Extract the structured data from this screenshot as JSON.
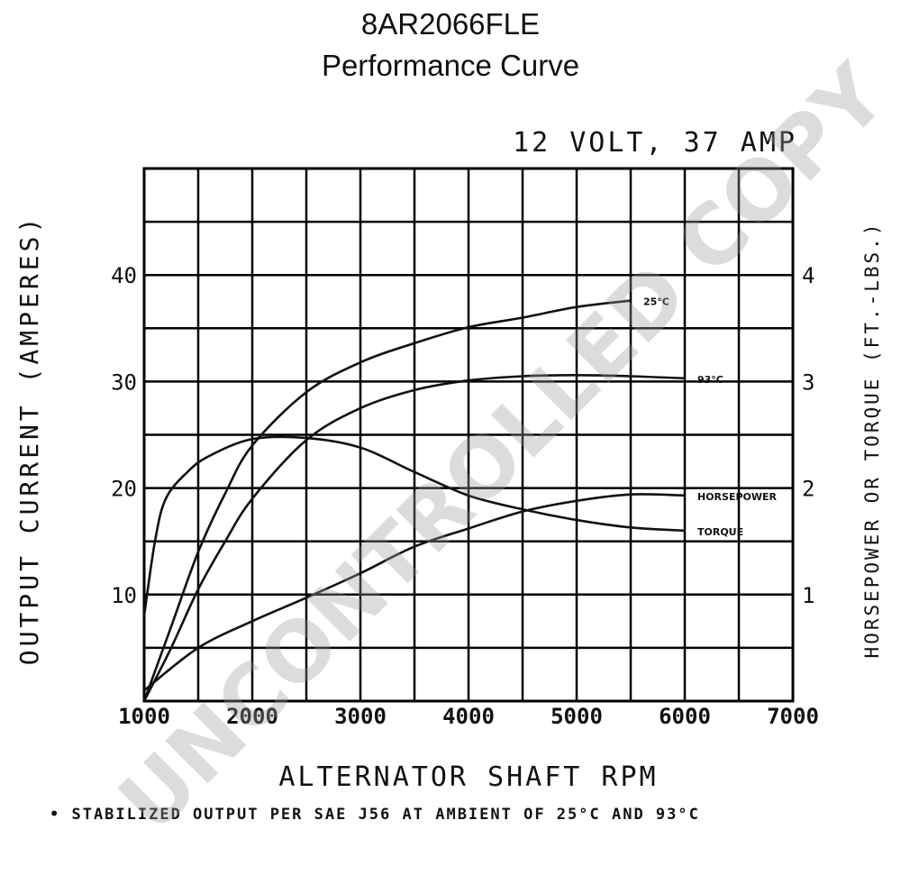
{
  "header": {
    "part_number": "8AR2066FLE",
    "subtitle": "Performance Curve"
  },
  "chart_data": {
    "type": "line",
    "title": "12 VOLT, 37 AMP",
    "xlabel": "ALTERNATOR SHAFT RPM",
    "ylabel": "OUTPUT CURRENT (AMPERES)",
    "y2label": "HORSEPOWER OR TORQUE (FT.-LBS.)",
    "footnote": "• STABILIZED OUTPUT PER SAE J56 AT AMBIENT OF 25°C AND 93°C",
    "watermark": "UNCONTROLLED COPY",
    "xlim": [
      1000,
      7000
    ],
    "ylim": [
      0,
      50
    ],
    "y2lim": [
      0,
      5
    ],
    "grid": true,
    "x_ticks": [
      1000,
      2000,
      3000,
      4000,
      5000,
      6000,
      7000
    ],
    "x_tick_labels": [
      "1000",
      "2000",
      "3000",
      "4000",
      "5000",
      "6000",
      "7000"
    ],
    "y_ticks": [
      10,
      20,
      30,
      40
    ],
    "y_tick_labels": [
      "10",
      "20",
      "30",
      "40"
    ],
    "y2_ticks": [
      1,
      2,
      3,
      4
    ],
    "y2_tick_labels": [
      "1",
      "2",
      "3",
      "4"
    ],
    "series": [
      {
        "name": "25°C",
        "axis": "left",
        "x": [
          1000,
          1250,
          1500,
          1750,
          2000,
          2500,
          3000,
          3500,
          4000,
          4500,
          5000,
          5500
        ],
        "y": [
          0,
          7,
          14,
          19.5,
          24,
          29,
          31.8,
          33.6,
          35.1,
          36,
          37,
          37.6
        ]
      },
      {
        "name": "93°C",
        "axis": "left",
        "x": [
          1000,
          1250,
          1500,
          1750,
          2000,
          2500,
          3000,
          3500,
          4000,
          4500,
          5000,
          5500,
          6000
        ],
        "y": [
          0,
          5,
          10.5,
          15,
          19,
          24.5,
          27.5,
          29.2,
          30.1,
          30.5,
          30.6,
          30.5,
          30.3
        ]
      },
      {
        "name": "HORSEPOWER",
        "axis": "right",
        "x": [
          1000,
          1500,
          2000,
          2500,
          3000,
          3500,
          4000,
          4500,
          5000,
          5500,
          6000
        ],
        "y": [
          0.1,
          0.5,
          0.75,
          0.97,
          1.2,
          1.45,
          1.62,
          1.78,
          1.88,
          1.94,
          1.93
        ]
      },
      {
        "name": "TORQUE",
        "axis": "right",
        "x": [
          1000,
          1100,
          1200,
          1400,
          1600,
          2000,
          2500,
          3000,
          3500,
          4000,
          4500,
          5000,
          5500,
          6000
        ],
        "y": [
          0.8,
          1.5,
          1.9,
          2.15,
          2.3,
          2.46,
          2.47,
          2.38,
          2.15,
          1.93,
          1.8,
          1.7,
          1.63,
          1.6
        ]
      }
    ]
  }
}
